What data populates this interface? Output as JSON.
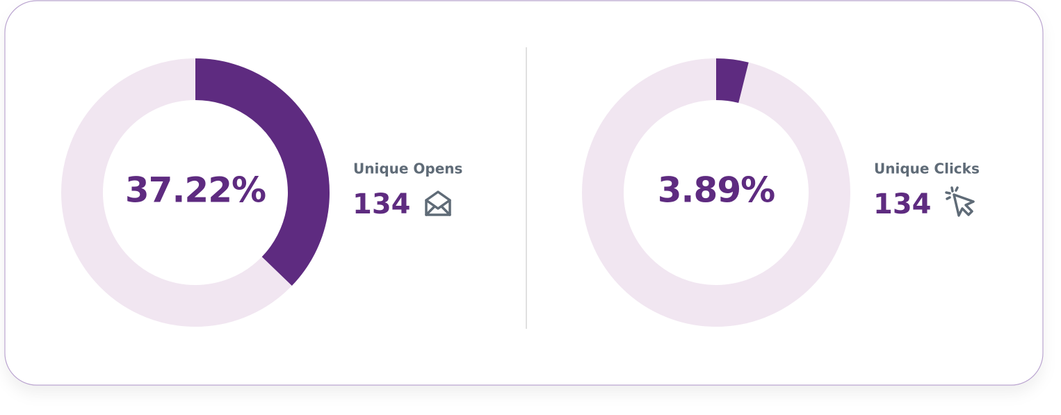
{
  "chart_data": [
    {
      "type": "donut",
      "title": "Unique Opens",
      "values": [
        37.22
      ],
      "value_labels": [
        "37.22%"
      ],
      "range": [
        0,
        100
      ],
      "count": 134,
      "color": "#5e2b80",
      "track_color": "#f1e6f1"
    },
    {
      "type": "donut",
      "title": "Unique Clicks",
      "values": [
        3.89
      ],
      "value_labels": [
        "3.89%"
      ],
      "range": [
        0,
        100
      ],
      "count": 134,
      "color": "#5e2b80",
      "track_color": "#f1e6f1"
    }
  ]
}
